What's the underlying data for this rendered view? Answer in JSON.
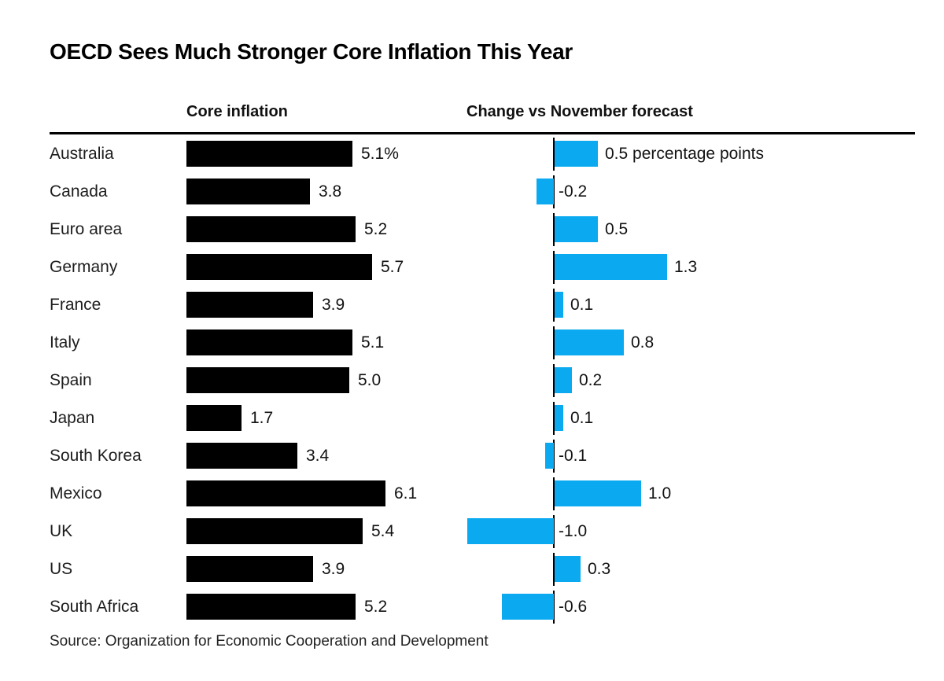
{
  "title": "OECD Sees Much Stronger Core Inflation This Year",
  "source": "Source: Organization for Economic Cooperation and Development",
  "columns": {
    "left": "Core inflation",
    "right": "Change vs November forecast"
  },
  "colors": {
    "core_bar": "#000000",
    "change_bar": "#0baaf0",
    "text": "#1a1a1a",
    "axis": "#000000"
  },
  "chart_data": {
    "type": "bar",
    "orientation": "horizontal",
    "grid": false,
    "legend_position": "none",
    "categories": [
      "Australia",
      "Canada",
      "Euro area",
      "Germany",
      "France",
      "Italy",
      "Spain",
      "Japan",
      "South Korea",
      "Mexico",
      "UK",
      "US",
      "South Africa"
    ],
    "series": [
      {
        "name": "Core inflation",
        "unit": "%",
        "axis_range": [
          0,
          6.5
        ],
        "values": [
          5.1,
          3.8,
          5.2,
          5.7,
          3.9,
          5.1,
          5.0,
          1.7,
          3.4,
          6.1,
          5.4,
          3.9,
          5.2
        ],
        "labels": [
          "5.1%",
          "3.8",
          "5.2",
          "5.7",
          "3.9",
          "5.1",
          "5.0",
          "1.7",
          "3.4",
          "6.1",
          "5.4",
          "3.9",
          "5.2"
        ]
      },
      {
        "name": "Change vs November forecast",
        "unit": "percentage points",
        "axis_range": [
          -1.2,
          1.5
        ],
        "values": [
          0.5,
          -0.2,
          0.5,
          1.3,
          0.1,
          0.8,
          0.2,
          0.1,
          -0.1,
          1.0,
          -1.0,
          0.3,
          -0.6
        ],
        "labels": [
          "0.5 percentage points",
          "-0.2",
          "0.5",
          "1.3",
          "0.1",
          "0.8",
          "0.2",
          "0.1",
          "-0.1",
          "1.0",
          "-1.0",
          "0.3",
          "-0.6"
        ]
      }
    ]
  }
}
